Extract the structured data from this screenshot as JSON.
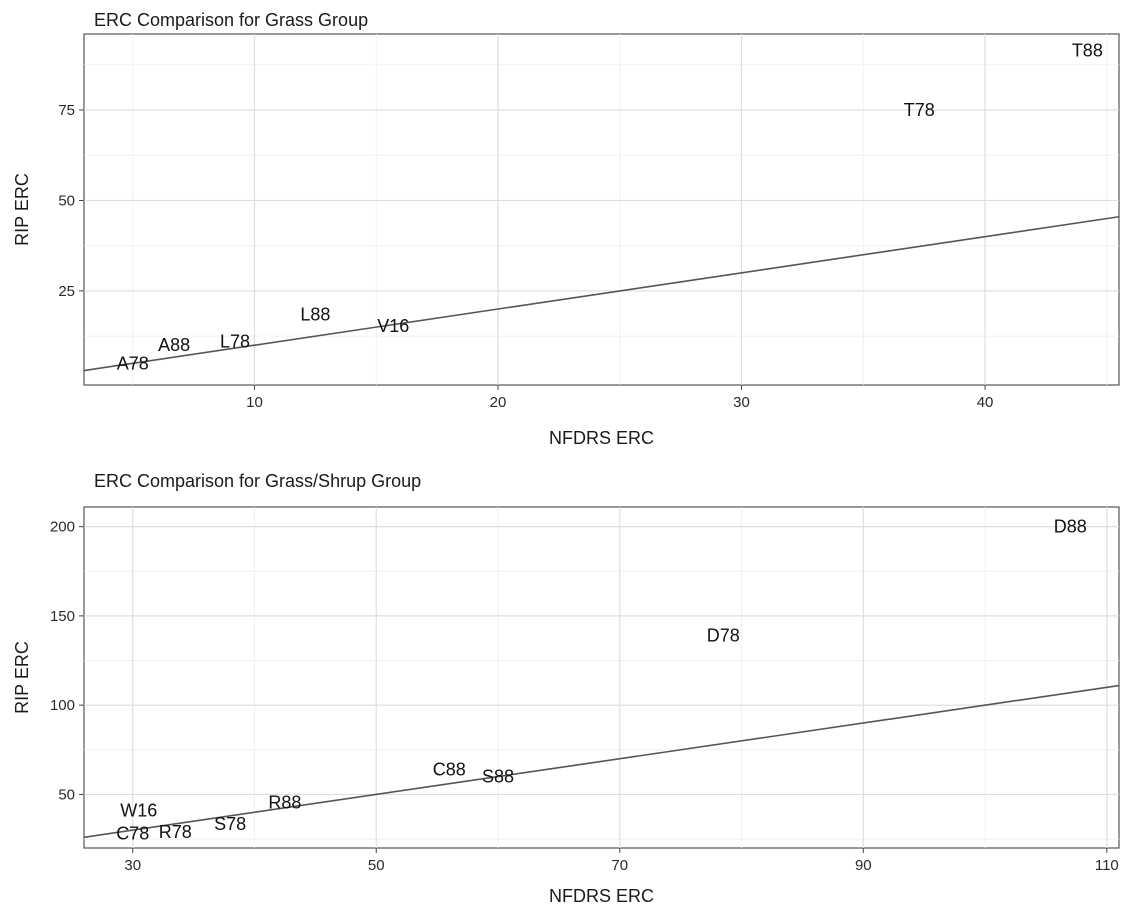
{
  "chart_data": [
    {
      "type": "scatter",
      "title": "ERC Comparison for Grass Group",
      "xlabel": "NFDRS ERC",
      "ylabel": "RIP ERC",
      "xlim": [
        3,
        45.5
      ],
      "ylim": [
        -1,
        96
      ],
      "xticks": [
        10,
        20,
        30,
        40
      ],
      "yticks": [
        25,
        50,
        75
      ],
      "grid": true,
      "reference_line": {
        "slope": 1,
        "intercept": 0
      },
      "points": [
        {
          "label": "A78",
          "x": 5,
          "y": 5
        },
        {
          "label": "A88",
          "x": 6.7,
          "y": 10
        },
        {
          "label": "L78",
          "x": 9.2,
          "y": 11
        },
        {
          "label": "L88",
          "x": 12.5,
          "y": 18.5
        },
        {
          "label": "V16",
          "x": 15.7,
          "y": 15.3
        },
        {
          "label": "T78",
          "x": 37.3,
          "y": 75
        },
        {
          "label": "T88",
          "x": 44.2,
          "y": 91.5
        }
      ]
    },
    {
      "type": "scatter",
      "title": "ERC Comparison for Grass/Shrup Group",
      "xlabel": "NFDRS ERC",
      "ylabel": "RIP ERC",
      "xlim": [
        26,
        111
      ],
      "ylim": [
        20,
        211
      ],
      "xticks": [
        30,
        50,
        70,
        90,
        110
      ],
      "yticks": [
        50,
        100,
        150,
        200
      ],
      "grid": true,
      "reference_line": {
        "slope": 1,
        "intercept": 0
      },
      "points": [
        {
          "label": "C78",
          "x": 30,
          "y": 28
        },
        {
          "label": "R78",
          "x": 33.5,
          "y": 29
        },
        {
          "label": "W16",
          "x": 30.5,
          "y": 41
        },
        {
          "label": "S78",
          "x": 38,
          "y": 33.5
        },
        {
          "label": "R88",
          "x": 42.5,
          "y": 45.5
        },
        {
          "label": "C88",
          "x": 56,
          "y": 64
        },
        {
          "label": "S88",
          "x": 60,
          "y": 60
        },
        {
          "label": "D78",
          "x": 78.5,
          "y": 139
        },
        {
          "label": "D88",
          "x": 107,
          "y": 200
        }
      ]
    }
  ]
}
